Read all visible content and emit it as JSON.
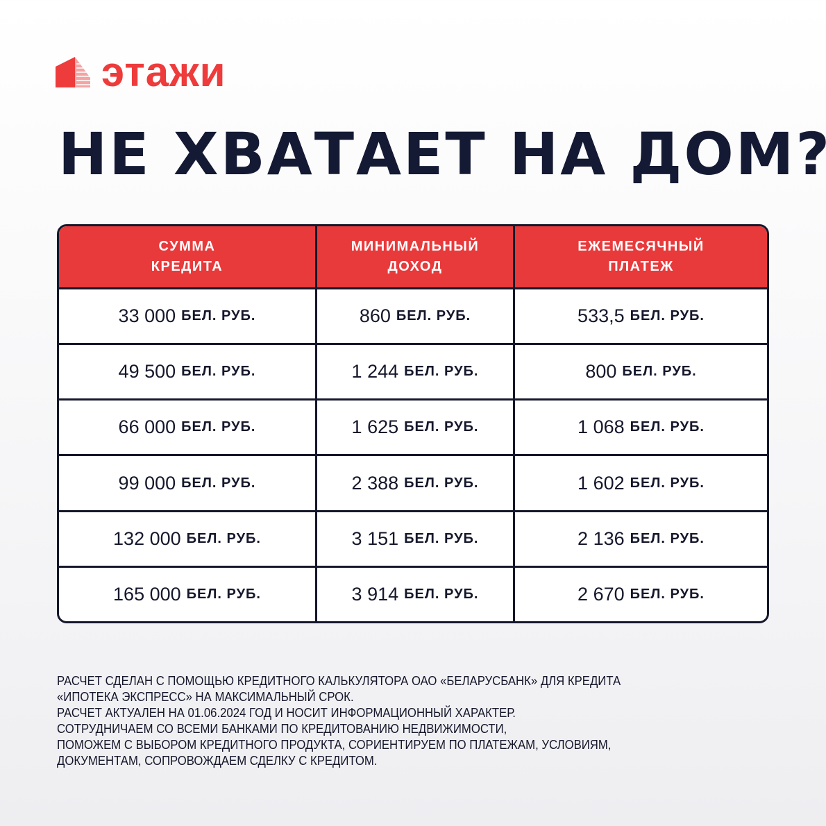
{
  "brand": {
    "name": "этажи",
    "color": "#ee3b3b"
  },
  "title": "НЕ ХВАТАЕТ НА ДОМ?",
  "table": {
    "headers": [
      "СУММА\nКРЕДИТА",
      "МИНИМАЛЬНЫЙ\nДОХОД",
      "ЕЖЕМЕСЯЧНЫЙ\nПЛАТЕЖ"
    ],
    "unit": "БЕЛ. РУБ.",
    "rows": [
      [
        "33 000",
        "860",
        "533,5"
      ],
      [
        "49 500",
        "1 244",
        "800"
      ],
      [
        "66 000",
        "1 625",
        "1 068"
      ],
      [
        "99 000",
        "2 388",
        "1 602"
      ],
      [
        "132 000",
        "3 151",
        "2 136"
      ],
      [
        "165 000",
        "3 914",
        "2 670"
      ]
    ],
    "header_color": "#e8393b"
  },
  "footer": [
    "РАСЧЕТ СДЕЛАН С ПОМОЩЬЮ КРЕДИТНОГО КАЛЬКУЛЯТОРА ОАО «БЕЛАРУСБАНК» ДЛЯ КРЕДИТА",
    "«ИПОТЕКА ЭКСПРЕСС» НА МАКСИМАЛЬНЫЙ СРОК.",
    "РАСЧЕТ АКТУАЛЕН НА 01.06.2024 ГОД И НОСИТ ИНФОРМАЦИОННЫЙ ХАРАКТЕР.",
    "СОТРУДНИЧАЕМ СО ВСЕМИ БАНКАМИ ПО КРЕДИТОВАНИЮ НЕДВИЖИМОСТИ,",
    "ПОМОЖЕМ С ВЫБОРОМ КРЕДИТНОГО ПРОДУКТА, СОРИЕНТИРУЕМ ПО ПЛАТЕЖАМ, УСЛОВИЯМ,",
    "ДОКУМЕНТАМ, СОПРОВОЖДАЕМ СДЕЛКУ С КРЕДИТОМ."
  ]
}
